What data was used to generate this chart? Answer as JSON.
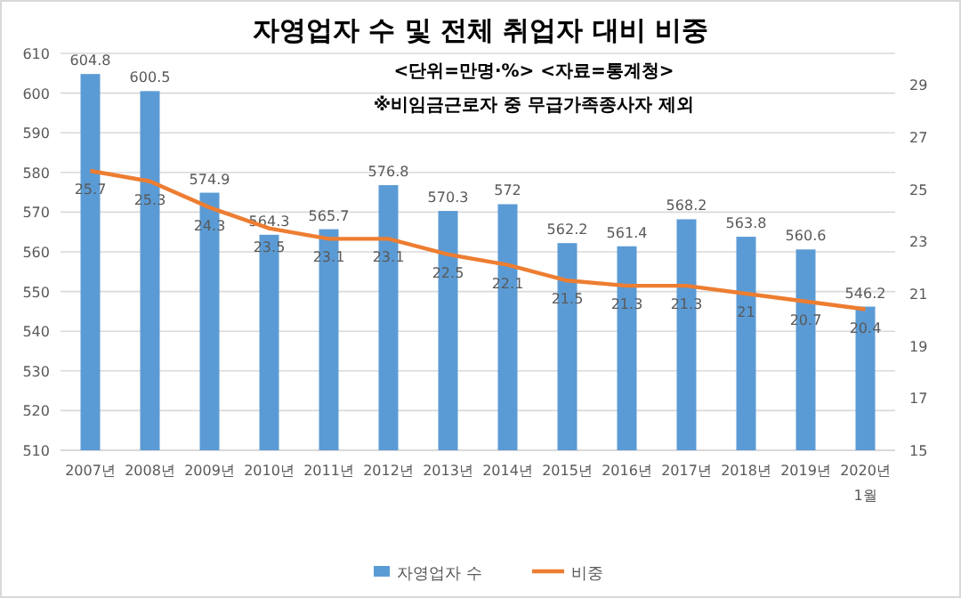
{
  "chart_data": {
    "type": "bar",
    "title": "자영업자 수 및 전체 취업자 대비 비중",
    "subtitle": "<단위=만명·%> <자료=통계청>",
    "annotations": [
      "※비임금근로자 중 무급가족종사자 제외"
    ],
    "categories": [
      "2007년",
      "2008년",
      "2009년",
      "2010년",
      "2011년",
      "2012년",
      "2013년",
      "2014년",
      "2015년",
      "2016년",
      "2017년",
      "2018년",
      "2019년",
      "2020년 1월"
    ],
    "series": [
      {
        "name": "자영업자 수",
        "color": "#5b9bd5",
        "values": [
          604.8,
          600.5,
          574.9,
          564.3,
          565.7,
          576.8,
          570.3,
          572,
          562.2,
          561.4,
          568.2,
          563.8,
          560.6,
          546.2
        ]
      },
      {
        "name": "비중",
        "type": "line",
        "axis": "y2",
        "color": "#ed7d31",
        "values": [
          25.7,
          25.3,
          24.3,
          23.5,
          23.1,
          23.1,
          22.5,
          22.1,
          21.5,
          21.3,
          21.3,
          21,
          20.7,
          20.4
        ]
      }
    ],
    "ylim": [
      510,
      610
    ],
    "yticks": [
      510,
      520,
      530,
      540,
      550,
      560,
      570,
      580,
      590,
      600,
      610
    ],
    "y2lim": [
      15,
      30.2
    ],
    "y2ticks": [
      15,
      17,
      19,
      21,
      23,
      25,
      27,
      29
    ],
    "grid": "y",
    "legend": "bottom",
    "data_labels": true,
    "marker": "none",
    "line_style": "solid"
  }
}
